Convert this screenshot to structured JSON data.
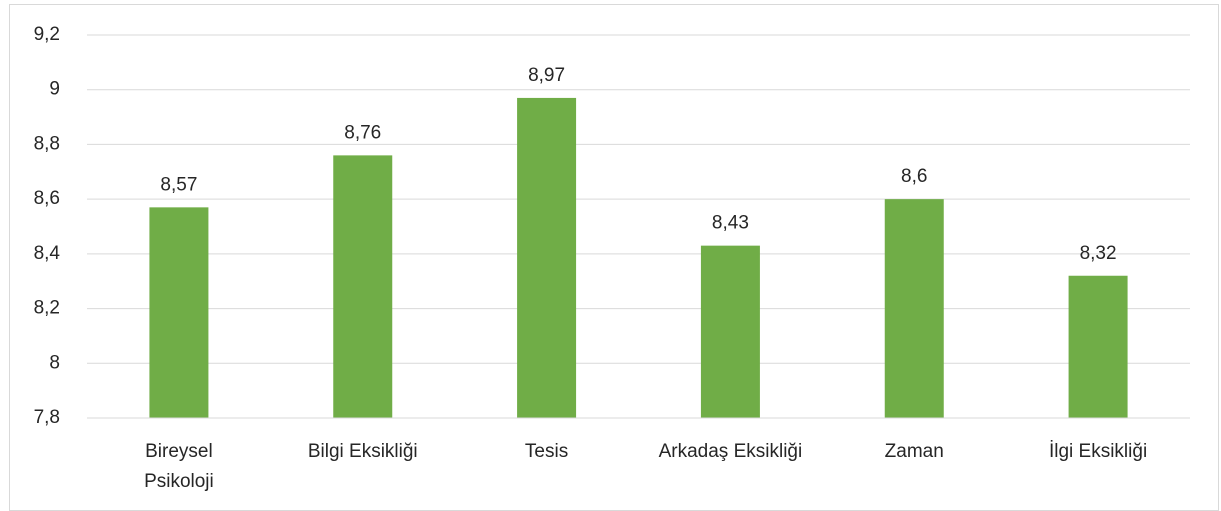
{
  "chart_data": {
    "type": "bar",
    "categories": [
      "Bireysel Psikoloji",
      "Bilgi Eksikliği",
      "Tesis",
      "Arkadaş Eksikliği",
      "Zaman",
      "İlgi Eksikliği"
    ],
    "values": [
      8.57,
      8.76,
      8.97,
      8.43,
      8.6,
      8.32
    ],
    "value_labels": [
      "8,57",
      "8,76",
      "8,97",
      "8,43",
      "8,6",
      "8,32"
    ],
    "color": "#70ad47",
    "ylim": [
      7.8,
      9.2
    ],
    "yticks": [
      {
        "value": 7.8,
        "label": "7,8"
      },
      8,
      {
        "value": 8.2,
        "label": "8,2"
      },
      {
        "value": 8.4,
        "label": "8,4"
      },
      {
        "value": 8.6,
        "label": "8,6"
      },
      {
        "value": 8.8,
        "label": "8,8"
      },
      9,
      {
        "value": 9.2,
        "label": "9,2"
      }
    ],
    "grid": true
  }
}
